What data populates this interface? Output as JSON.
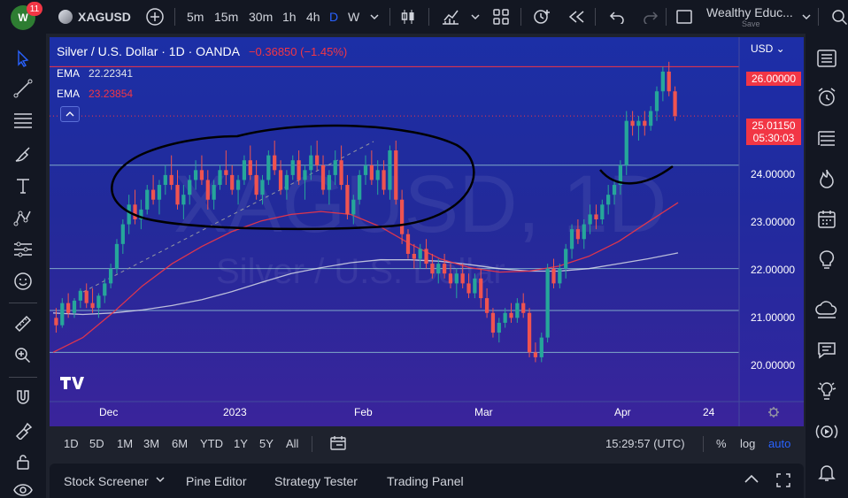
{
  "topbar": {
    "notifications": "11",
    "symbol": "XAGUSD",
    "intervals": [
      "5m",
      "15m",
      "30m",
      "1h",
      "4h",
      "D",
      "W"
    ],
    "active_interval": "D",
    "layout_name": "Wealthy Educ...",
    "save_label": "Save"
  },
  "legend": {
    "title": "Silver / U.S. Dollar · 1D · OANDA",
    "change": "−0.36850 (−1.45%)",
    "ema1_label": "EMA",
    "ema1_value": "22.22341",
    "ema2_label": "EMA",
    "ema2_value": "23.23854"
  },
  "watermark": {
    "symbol": "XAGUSD, 1D",
    "description": "Silver / U.S. Dollar"
  },
  "price_axis": {
    "currency": "USD",
    "ticks": [
      "24.00000",
      "23.00000",
      "22.00000",
      "21.00000",
      "20.00000"
    ],
    "resistance_label": "26.00000",
    "current_price": "25.01150",
    "countdown": "05:30:03"
  },
  "time_axis": {
    "ticks": [
      "Dec",
      "2023",
      "Feb",
      "Mar",
      "Apr",
      "24"
    ]
  },
  "range_bar": {
    "ranges": [
      "1D",
      "5D",
      "1M",
      "3M",
      "6M",
      "YTD",
      "1Y",
      "5Y",
      "All"
    ],
    "clock": "15:29:57 (UTC)",
    "percent_label": "%",
    "log_label": "log",
    "auto_label": "auto"
  },
  "bottom_panel": {
    "tabs": [
      "Stock Screener",
      "Pine Editor",
      "Strategy Tester",
      "Trading Panel"
    ]
  },
  "colors": {
    "up": "#26a69a",
    "down": "#ef5350",
    "accent": "#2962ff",
    "ema_fast": "#e0e3eb",
    "ema_slow": "#f23645",
    "resistance": "#f23645"
  },
  "chart_data": {
    "type": "candlestick",
    "symbol": "XAGUSD",
    "interval": "1D",
    "ylim": [
      19.2,
      26.6
    ],
    "horizontal_lines": [
      26.0,
      24.0,
      21.9,
      21.05,
      20.2
    ],
    "series": [
      {
        "name": "EMA",
        "values": [
          21.0,
          20.97,
          21.0,
          21.06,
          21.15,
          21.27,
          21.43,
          21.62,
          21.8,
          21.92,
          22.02,
          22.08,
          22.08,
          22.05,
          21.98,
          21.9,
          21.85,
          21.85,
          21.9,
          22.0,
          22.1,
          22.22
        ]
      },
      {
        "name": "EMA",
        "values": [
          20.2,
          20.5,
          21.0,
          21.55,
          22.0,
          22.35,
          22.65,
          22.87,
          23.0,
          23.06,
          23.0,
          22.75,
          22.4,
          22.1,
          21.92,
          21.83,
          21.85,
          21.95,
          22.15,
          22.45,
          22.85,
          23.24
        ]
      }
    ],
    "candles": [
      [
        20.9,
        21.1,
        20.6,
        20.75
      ],
      [
        20.75,
        21.3,
        20.7,
        21.2
      ],
      [
        21.2,
        21.4,
        20.9,
        21.0
      ],
      [
        21.0,
        21.3,
        20.9,
        21.25
      ],
      [
        21.25,
        21.5,
        21.1,
        21.45
      ],
      [
        21.45,
        21.6,
        21.1,
        21.2
      ],
      [
        21.2,
        21.5,
        21.0,
        21.1
      ],
      [
        21.1,
        21.4,
        20.9,
        21.35
      ],
      [
        21.35,
        21.7,
        21.2,
        21.6
      ],
      [
        21.6,
        22.0,
        21.5,
        21.9
      ],
      [
        21.9,
        22.5,
        21.8,
        22.4
      ],
      [
        22.4,
        22.9,
        22.2,
        22.8
      ],
      [
        22.8,
        23.4,
        22.6,
        23.2
      ],
      [
        23.2,
        23.5,
        22.8,
        22.9
      ],
      [
        22.9,
        23.3,
        22.7,
        23.1
      ],
      [
        23.1,
        23.6,
        23.0,
        23.5
      ],
      [
        23.5,
        23.8,
        23.2,
        23.3
      ],
      [
        23.3,
        23.7,
        23.0,
        23.6
      ],
      [
        23.6,
        24.0,
        23.4,
        23.8
      ],
      [
        23.8,
        24.2,
        23.5,
        23.6
      ],
      [
        23.6,
        23.9,
        23.1,
        23.2
      ],
      [
        23.2,
        23.6,
        22.9,
        23.4
      ],
      [
        23.4,
        23.8,
        23.2,
        23.7
      ],
      [
        23.7,
        24.1,
        23.5,
        23.9
      ],
      [
        23.9,
        24.2,
        23.6,
        23.7
      ],
      [
        23.7,
        23.9,
        23.1,
        23.3
      ],
      [
        23.3,
        23.7,
        23.1,
        23.6
      ],
      [
        23.6,
        24.0,
        23.5,
        23.9
      ],
      [
        23.9,
        24.3,
        23.6,
        23.8
      ],
      [
        23.8,
        24.0,
        23.4,
        23.5
      ],
      [
        23.5,
        23.8,
        23.2,
        23.7
      ],
      [
        23.7,
        24.2,
        23.6,
        24.1
      ],
      [
        24.1,
        24.4,
        23.7,
        23.8
      ],
      [
        23.8,
        24.1,
        23.3,
        23.4
      ],
      [
        23.4,
        23.8,
        23.2,
        23.7
      ],
      [
        23.7,
        24.3,
        23.6,
        24.2
      ],
      [
        24.2,
        24.5,
        23.8,
        23.9
      ],
      [
        23.9,
        24.1,
        23.4,
        23.5
      ],
      [
        23.5,
        23.9,
        23.3,
        23.8
      ],
      [
        23.8,
        24.2,
        23.7,
        24.1
      ],
      [
        24.1,
        24.3,
        23.6,
        23.7
      ],
      [
        23.7,
        24.0,
        23.3,
        23.9
      ],
      [
        23.9,
        24.4,
        23.7,
        24.2
      ],
      [
        24.2,
        24.5,
        23.9,
        24.0
      ],
      [
        24.0,
        24.2,
        23.4,
        23.5
      ],
      [
        23.5,
        23.9,
        23.2,
        23.8
      ],
      [
        23.8,
        24.3,
        23.6,
        24.1
      ],
      [
        24.1,
        24.4,
        23.5,
        23.6
      ],
      [
        23.6,
        23.8,
        22.9,
        23.0
      ],
      [
        23.0,
        23.4,
        22.8,
        23.3
      ],
      [
        23.3,
        23.9,
        23.2,
        23.8
      ],
      [
        23.8,
        24.2,
        23.6,
        24.0
      ],
      [
        24.0,
        24.3,
        23.6,
        23.7
      ],
      [
        23.7,
        24.1,
        23.4,
        23.9
      ],
      [
        23.9,
        24.1,
        23.4,
        23.5
      ],
      [
        23.5,
        24.4,
        23.3,
        24.3
      ],
      [
        24.3,
        24.5,
        23.2,
        23.3
      ],
      [
        23.3,
        23.5,
        22.4,
        22.6
      ],
      [
        22.6,
        22.7,
        22.1,
        22.2
      ],
      [
        22.2,
        22.4,
        21.9,
        22.1
      ],
      [
        22.1,
        22.4,
        21.9,
        22.3
      ],
      [
        22.3,
        22.5,
        21.9,
        22.0
      ],
      [
        22.0,
        22.2,
        21.7,
        21.8
      ],
      [
        21.8,
        22.1,
        21.6,
        22.0
      ],
      [
        22.0,
        22.2,
        21.7,
        21.8
      ],
      [
        21.8,
        22.0,
        21.5,
        21.6
      ],
      [
        21.6,
        21.9,
        21.3,
        21.8
      ],
      [
        21.8,
        22.0,
        21.5,
        21.6
      ],
      [
        21.6,
        21.8,
        21.3,
        21.4
      ],
      [
        21.4,
        21.8,
        21.3,
        21.7
      ],
      [
        21.7,
        21.9,
        21.1,
        21.3
      ],
      [
        21.3,
        21.5,
        20.9,
        21.0
      ],
      [
        21.0,
        21.1,
        20.5,
        20.6
      ],
      [
        20.6,
        20.9,
        20.4,
        20.8
      ],
      [
        20.8,
        21.1,
        20.7,
        21.0
      ],
      [
        21.0,
        21.2,
        20.8,
        20.9
      ],
      [
        20.9,
        21.3,
        20.8,
        21.2
      ],
      [
        21.2,
        21.4,
        20.9,
        21.0
      ],
      [
        21.0,
        21.1,
        20.1,
        20.2
      ],
      [
        20.2,
        20.4,
        20.0,
        20.1
      ],
      [
        20.1,
        20.6,
        20.0,
        20.5
      ],
      [
        20.5,
        22.0,
        20.4,
        21.9
      ],
      [
        21.9,
        22.1,
        21.5,
        21.6
      ],
      [
        21.6,
        22.0,
        21.5,
        21.9
      ],
      [
        21.9,
        22.4,
        21.7,
        22.3
      ],
      [
        22.3,
        22.8,
        22.1,
        22.7
      ],
      [
        22.7,
        22.9,
        22.4,
        22.5
      ],
      [
        22.5,
        22.9,
        22.3,
        22.8
      ],
      [
        22.8,
        23.2,
        22.6,
        23.0
      ],
      [
        23.0,
        23.2,
        22.7,
        22.9
      ],
      [
        22.9,
        23.3,
        22.8,
        23.2
      ],
      [
        23.2,
        23.6,
        23.0,
        23.4
      ],
      [
        23.4,
        23.7,
        23.2,
        23.6
      ],
      [
        23.6,
        24.1,
        23.4,
        24.0
      ],
      [
        24.0,
        25.1,
        23.8,
        24.9
      ],
      [
        24.9,
        25.1,
        24.6,
        24.8
      ],
      [
        24.8,
        25.0,
        24.5,
        24.9
      ],
      [
        24.9,
        25.1,
        24.6,
        24.8
      ],
      [
        24.8,
        25.2,
        24.7,
        25.1
      ],
      [
        25.1,
        25.6,
        24.9,
        25.5
      ],
      [
        25.5,
        26.0,
        25.3,
        25.9
      ],
      [
        25.9,
        26.1,
        25.4,
        25.5
      ],
      [
        25.5,
        25.6,
        24.9,
        25.0
      ]
    ]
  }
}
